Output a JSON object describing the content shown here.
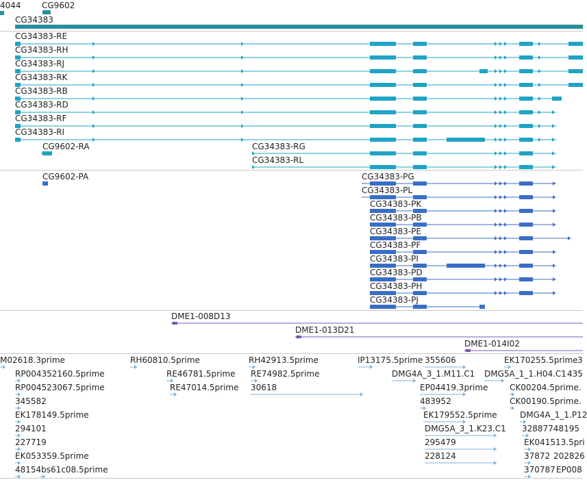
{
  "colors": {
    "gene": "#2a8f9a",
    "transcript": "#1ea4c4",
    "protein": "#3a6ec6",
    "clone": "#7b57b5",
    "est": "#7fb2dc",
    "separator": "#c8c8c8"
  },
  "top": {
    "labels": [
      {
        "text": "4044"
      },
      {
        "text": "CG9602"
      },
      {
        "text": "CG34383"
      }
    ]
  },
  "transcripts": {
    "labels": [
      {
        "text": "CG34383-RE"
      },
      {
        "text": "CG34383-RH"
      },
      {
        "text": "CG34383-RJ"
      },
      {
        "text": "CG34383-RK"
      },
      {
        "text": "CG34383-RB"
      },
      {
        "text": "CG34383-RD"
      },
      {
        "text": "CG34383-RF"
      },
      {
        "text": "CG34383-RI"
      },
      {
        "text": "CG9602-RA"
      },
      {
        "text": "CG34383-RG"
      },
      {
        "text": "CG34383-RL"
      }
    ]
  },
  "proteins": {
    "labels": [
      {
        "text": "CG9602-PA"
      },
      {
        "text": "CG34383-PG"
      },
      {
        "text": "CG34383-PL"
      },
      {
        "text": "CG34383-PK"
      },
      {
        "text": "CG34383-PB"
      },
      {
        "text": "CG34383-PE"
      },
      {
        "text": "CG34383-PF"
      },
      {
        "text": "CG34383-PI"
      },
      {
        "text": "CG34383-PD"
      },
      {
        "text": "CG34383-PH"
      },
      {
        "text": "CG34383-PJ"
      }
    ]
  },
  "clones": {
    "labels": [
      {
        "text": "DME1-008D13"
      },
      {
        "text": "DME1-013D21"
      },
      {
        "text": "DME1-014I02"
      }
    ]
  },
  "ests": {
    "labels": [
      {
        "text": "M02618.3prime"
      },
      {
        "text": "RH60810.5prime"
      },
      {
        "text": "RH42913.5prime"
      },
      {
        "text": "IP13175.5prime"
      },
      {
        "text": "355606"
      },
      {
        "text": "EK170255.5prime"
      },
      {
        "text": "3"
      },
      {
        "text": "RP004352160.5prime"
      },
      {
        "text": "RE46781.5prime"
      },
      {
        "text": "RE74982.5prime"
      },
      {
        "text": "DMG4A_3_1.M11.C1"
      },
      {
        "text": "DMG5A_1_1.H04.C1"
      },
      {
        "text": "435"
      },
      {
        "text": "RP004523067.5prime"
      },
      {
        "text": "RE47014.5prime"
      },
      {
        "text": "30618"
      },
      {
        "text": "EP04419.3prime"
      },
      {
        "text": "CK00204.5prime."
      },
      {
        "text": "345582"
      },
      {
        "text": "483952"
      },
      {
        "text": "CK00190.5prime."
      },
      {
        "text": "EK178149.5prime"
      },
      {
        "text": "EK179552.5prime"
      },
      {
        "text": "DMG4A_1_1.P12"
      },
      {
        "text": "294101"
      },
      {
        "text": "DMG5A_3_1.K23.C1"
      },
      {
        "text": "32887748195"
      },
      {
        "text": "227719"
      },
      {
        "text": "295479"
      },
      {
        "text": "EK041513.5pri"
      },
      {
        "text": "EK053359.5prime"
      },
      {
        "text": "228124"
      },
      {
        "text": "37872"
      },
      {
        "text": "202826"
      },
      {
        "text": "48154bs61c08.5prime"
      },
      {
        "text": "370787"
      },
      {
        "text": "EP008"
      }
    ]
  }
}
